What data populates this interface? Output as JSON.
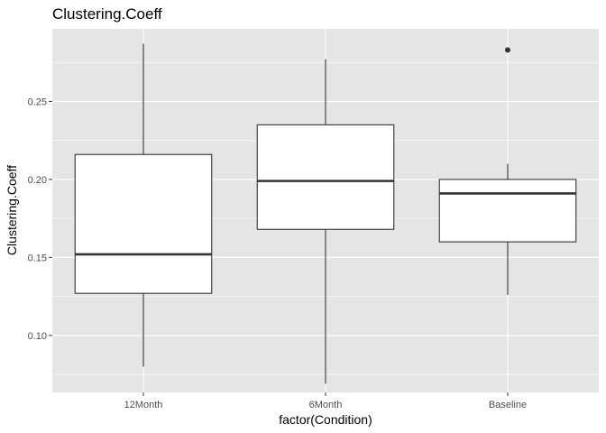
{
  "chart_data": {
    "type": "boxplot",
    "title": "Clustering.Coeff",
    "xlabel": "factor(Condition)",
    "ylabel": "Clustering.Coeff",
    "categories": [
      "12Month",
      "6Month",
      "Baseline"
    ],
    "ylim": [
      0.0635,
      0.2965
    ],
    "yticks": [
      0.1,
      0.15,
      0.2,
      0.25
    ],
    "ytick_labels": [
      "0.10",
      "0.15",
      "0.20",
      "0.25"
    ],
    "grid": true,
    "boxes": [
      {
        "category": "12Month",
        "whisker_low": 0.08,
        "q1": 0.127,
        "median": 0.152,
        "q3": 0.216,
        "whisker_high": 0.287,
        "outliers": []
      },
      {
        "category": "6Month",
        "whisker_low": 0.069,
        "q1": 0.168,
        "median": 0.199,
        "q3": 0.235,
        "whisker_high": 0.277,
        "outliers": []
      },
      {
        "category": "Baseline",
        "whisker_low": 0.126,
        "q1": 0.16,
        "median": 0.191,
        "q3": 0.2,
        "whisker_high": 0.21,
        "outliers": [
          0.283
        ]
      }
    ],
    "colors": {
      "panel": "#e5e5e5",
      "grid_major": "#ffffff",
      "box_fill": "#ffffff",
      "box_stroke": "#333333"
    }
  }
}
